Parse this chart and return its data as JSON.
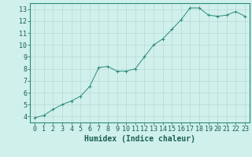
{
  "xlabel": "Humidex (Indice chaleur)",
  "ylabel": "",
  "x_values": [
    0,
    1,
    2,
    3,
    4,
    5,
    6,
    7,
    8,
    9,
    10,
    11,
    12,
    13,
    14,
    15,
    16,
    17,
    18,
    19,
    20,
    21,
    22,
    23
  ],
  "y_values": [
    3.9,
    4.1,
    4.6,
    5.0,
    5.3,
    5.7,
    6.5,
    8.1,
    8.2,
    7.8,
    7.8,
    8.0,
    9.0,
    10.0,
    10.5,
    11.3,
    12.1,
    13.1,
    13.1,
    12.5,
    12.4,
    12.5,
    12.8,
    12.4
  ],
  "xlim": [
    -0.5,
    23.5
  ],
  "ylim": [
    3.5,
    13.5
  ],
  "yticks": [
    4,
    5,
    6,
    7,
    8,
    9,
    10,
    11,
    12,
    13
  ],
  "xticks": [
    0,
    1,
    2,
    3,
    4,
    5,
    6,
    7,
    8,
    9,
    10,
    11,
    12,
    13,
    14,
    15,
    16,
    17,
    18,
    19,
    20,
    21,
    22,
    23
  ],
  "line_color": "#2e8b7a",
  "marker_color": "#2e8b7a",
  "bg_color": "#cff0eb",
  "grid_color": "#b8d8d4",
  "axis_color": "#2e8b7a",
  "label_color": "#1a5f54",
  "tick_color": "#1a5f54",
  "font_size_label": 7,
  "font_size_tick": 6
}
